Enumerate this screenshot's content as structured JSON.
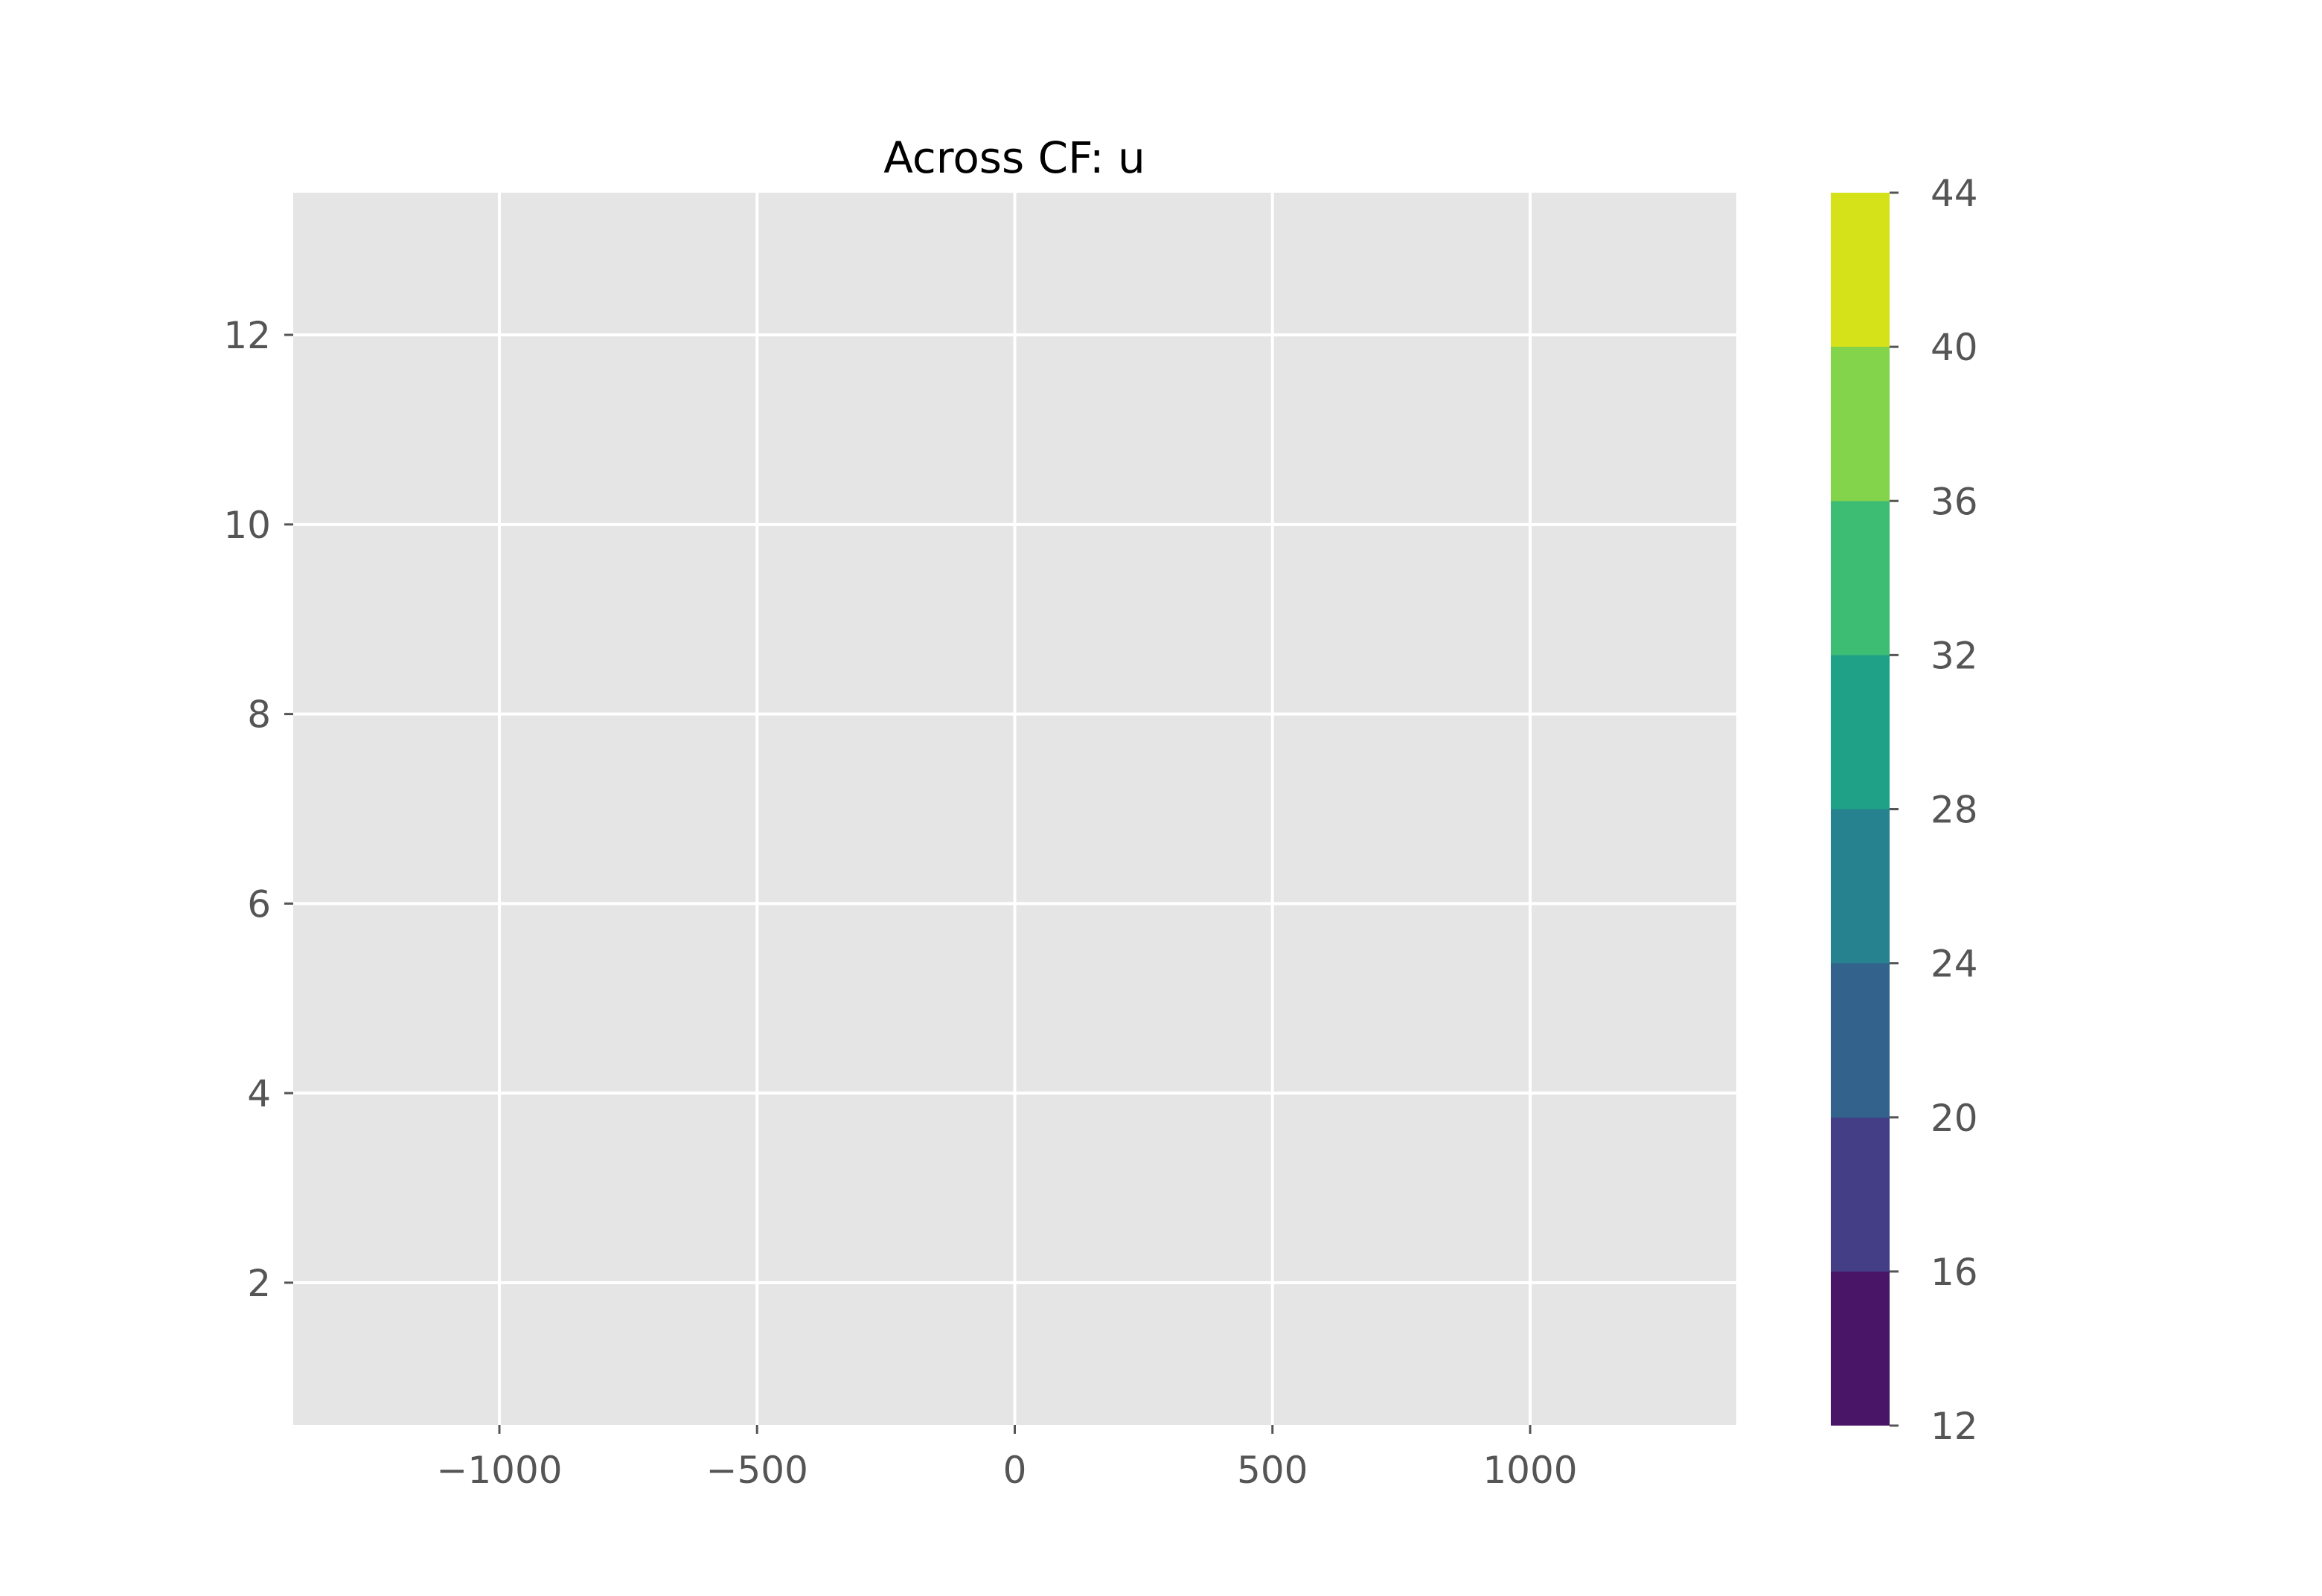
{
  "chart_data": {
    "type": "heatmap",
    "title": "Across CF: u",
    "xlabel": "",
    "ylabel": "",
    "xlim": [
      -1400,
      1400
    ],
    "ylim": [
      0.5,
      13.5
    ],
    "x_ticks": [
      -1000,
      -500,
      0,
      500,
      1000
    ],
    "x_tick_labels": [
      "−1000",
      "−500",
      "0",
      "500",
      "1000"
    ],
    "y_ticks": [
      2,
      4,
      6,
      8,
      10,
      12
    ],
    "y_tick_labels": [
      "2",
      "4",
      "6",
      "8",
      "10",
      "12"
    ],
    "grid": true,
    "style": "ggplot",
    "plot_background": "#e5e5e5",
    "grid_color": "#ffffff",
    "colorbar": {
      "colormap": "viridis",
      "levels": [
        12,
        16,
        20,
        24,
        28,
        32,
        36,
        40,
        44
      ],
      "tick_labels": [
        "12",
        "16",
        "20",
        "24",
        "28",
        "32",
        "36",
        "40",
        "44"
      ],
      "colors": [
        "#481567",
        "#433e85",
        "#33638d",
        "#26828e",
        "#1fa187",
        "#3dbc74",
        "#84d44b",
        "#d5e21a"
      ]
    }
  }
}
